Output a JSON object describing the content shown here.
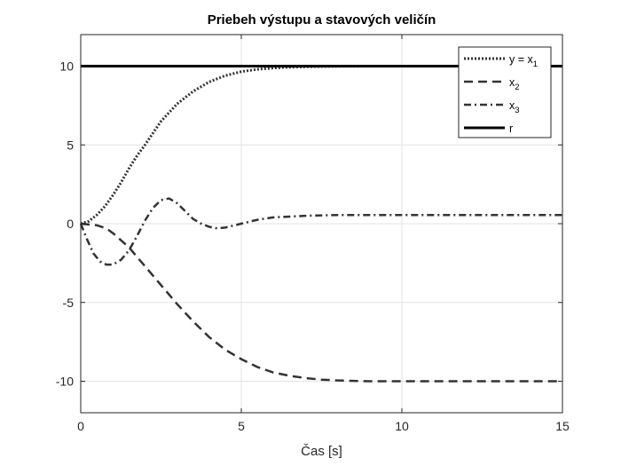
{
  "chart_data": {
    "type": "line",
    "title": "Priebeh výstupu a stavových veličín",
    "xlabel": "Čas [s]",
    "ylabel": "",
    "xlim": [
      0,
      15
    ],
    "ylim": [
      -12,
      12
    ],
    "x_ticks": [
      0,
      5,
      10,
      15
    ],
    "y_ticks": [
      -10,
      -5,
      0,
      5,
      10
    ],
    "grid": true,
    "legend_position": "top-right",
    "series": [
      {
        "name": "y = x",
        "name_sub": "1",
        "style": "dotted",
        "color": "#333333",
        "x": [
          0,
          0.25,
          0.5,
          0.75,
          1,
          1.25,
          1.5,
          1.75,
          2,
          2.5,
          3,
          3.5,
          4,
          4.5,
          5,
          5.5,
          6,
          6.5,
          7,
          7.5,
          8,
          9,
          10,
          11,
          12,
          13,
          14,
          15
        ],
        "y": [
          0,
          0.15,
          0.55,
          1.1,
          1.8,
          2.6,
          3.5,
          4.3,
          5.0,
          6.5,
          7.6,
          8.4,
          9.0,
          9.4,
          9.65,
          9.8,
          9.88,
          9.93,
          9.96,
          9.98,
          9.99,
          10,
          10,
          10,
          10,
          10,
          10,
          10
        ]
      },
      {
        "name": "x",
        "name_sub": "2",
        "style": "dashed",
        "color": "#333333",
        "x": [
          0,
          0.5,
          0.8,
          1,
          1.5,
          2,
          2.5,
          3,
          3.5,
          4,
          4.5,
          5,
          5.5,
          6,
          6.5,
          7,
          7.5,
          8,
          8.5,
          9,
          9.5,
          10,
          11,
          12,
          13,
          14,
          15
        ],
        "y": [
          0,
          -0.1,
          -0.3,
          -0.6,
          -1.5,
          -2.7,
          -3.9,
          -5.1,
          -6.2,
          -7.2,
          -8.0,
          -8.6,
          -9.1,
          -9.45,
          -9.65,
          -9.8,
          -9.9,
          -9.95,
          -9.98,
          -10,
          -10,
          -10,
          -10,
          -10,
          -10,
          -10,
          -10
        ]
      },
      {
        "name": "x",
        "name_sub": "3",
        "style": "dashdot",
        "color": "#333333",
        "x": [
          0,
          0.2,
          0.4,
          0.6,
          0.8,
          1,
          1.25,
          1.5,
          1.75,
          2,
          2.25,
          2.5,
          2.75,
          3,
          3.25,
          3.5,
          3.75,
          4,
          4.25,
          4.5,
          5,
          5.5,
          6,
          7,
          8,
          9,
          10,
          11,
          12,
          13,
          14,
          15
        ],
        "y": [
          0,
          -1.0,
          -1.9,
          -2.4,
          -2.6,
          -2.6,
          -2.3,
          -1.7,
          -0.8,
          0.2,
          1.0,
          1.5,
          1.6,
          1.3,
          0.8,
          0.3,
          0.0,
          -0.2,
          -0.3,
          -0.25,
          0.0,
          0.25,
          0.4,
          0.5,
          0.55,
          0.55,
          0.55,
          0.55,
          0.55,
          0.55,
          0.55,
          0.55
        ]
      },
      {
        "name": "r",
        "name_sub": "",
        "style": "solid",
        "color": "#000000",
        "x": [
          0,
          15
        ],
        "y": [
          10,
          10
        ]
      }
    ]
  }
}
